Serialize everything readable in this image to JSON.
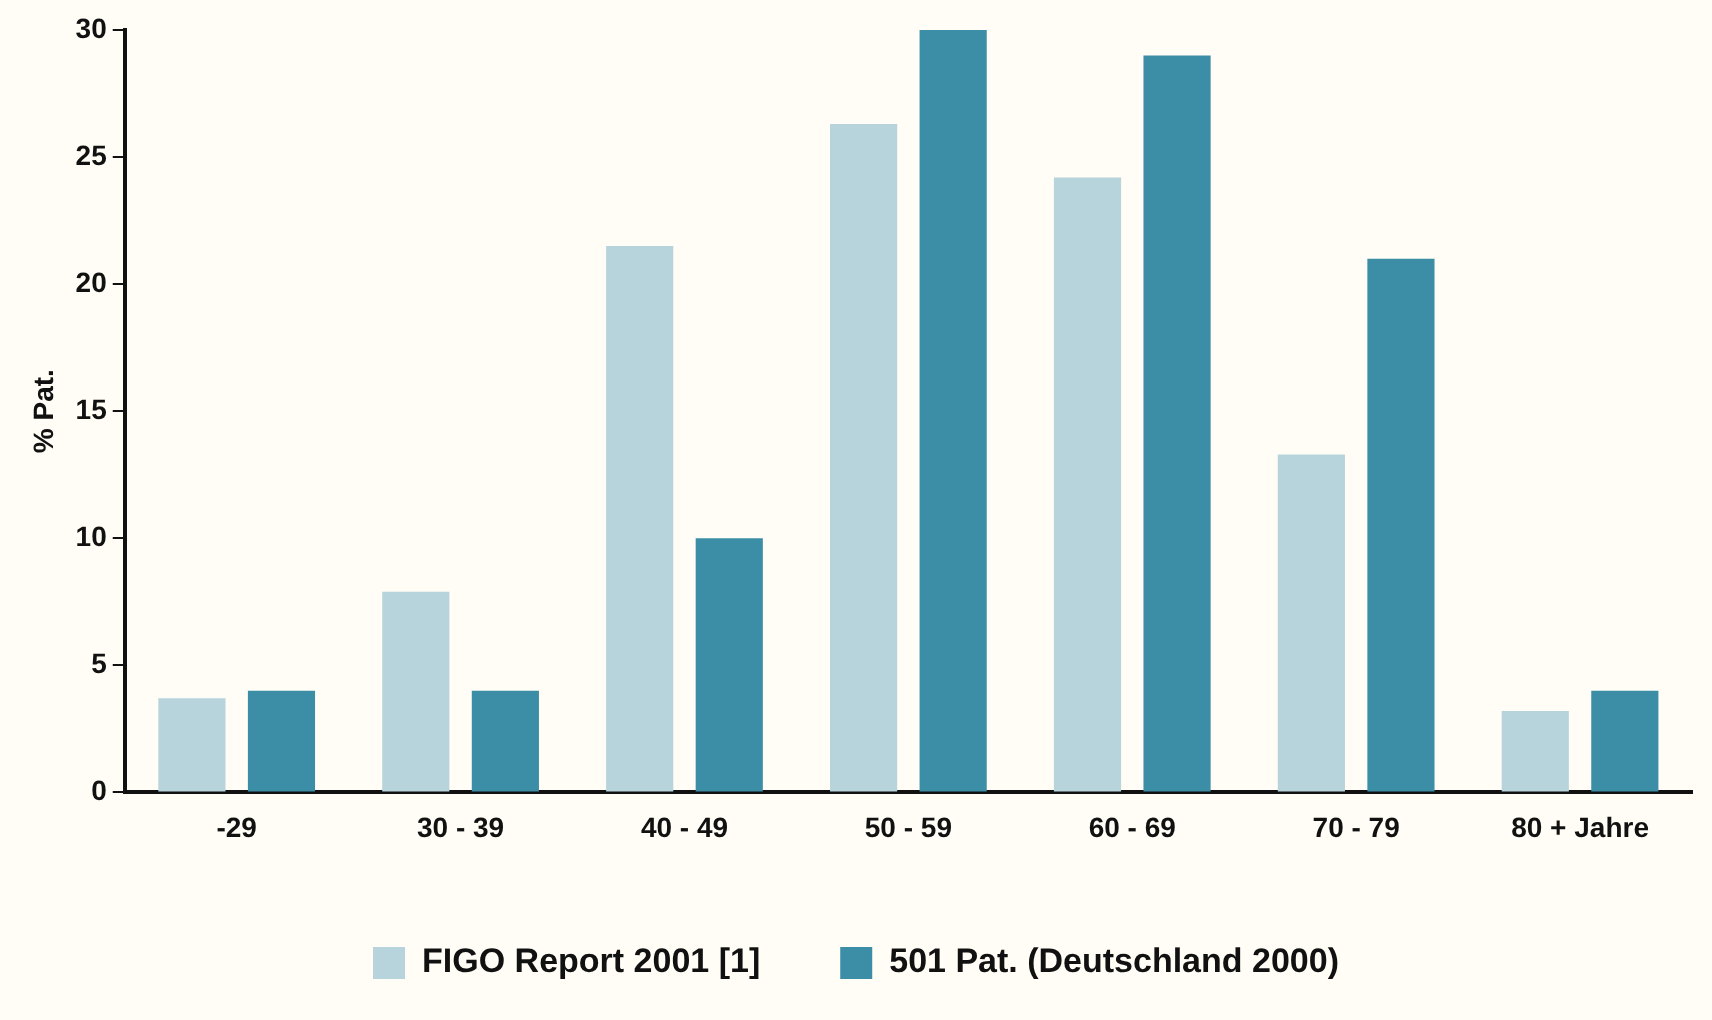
{
  "chart_data": {
    "type": "bar",
    "ylabel": "% Pat.",
    "categories": [
      "-29",
      "30 - 39",
      "40 - 49",
      "50 - 59",
      "60 - 69",
      "70 - 79",
      "80 + Jahre"
    ],
    "series": [
      {
        "name": "FIGO Report 2001 [1]",
        "color": "#b7d3dc",
        "values": [
          3.7,
          7.9,
          21.5,
          26.3,
          24.2,
          13.3,
          3.2
        ]
      },
      {
        "name": "501 Pat. (Deutschland 2000)",
        "color": "#3b8ea6",
        "values": [
          4,
          4,
          10,
          30,
          29,
          21,
          4
        ]
      }
    ],
    "ylim": [
      0,
      30
    ],
    "yticks": [
      0,
      5,
      10,
      15,
      20,
      25,
      30
    ],
    "grid": false,
    "legend": "bottom"
  }
}
